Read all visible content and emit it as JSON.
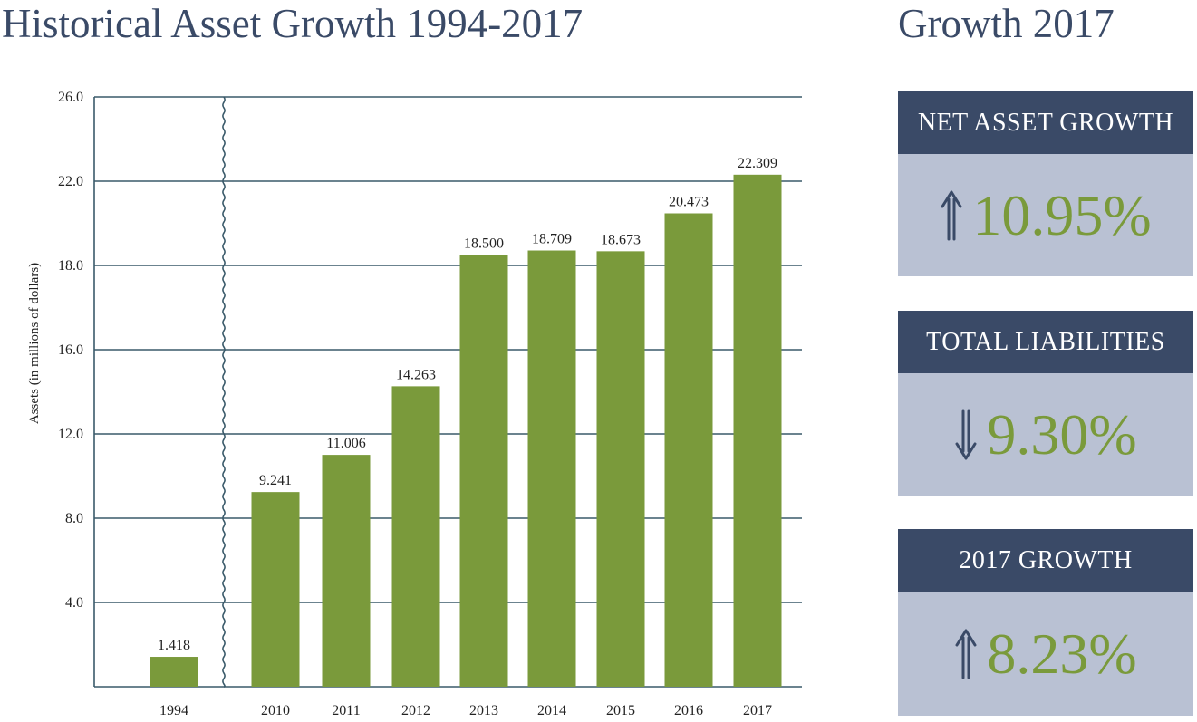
{
  "title": "Historical Asset Growth 1994-2017",
  "side_title": "Growth 2017",
  "cards": [
    {
      "label": "NET ASSET GROWTH",
      "value": "10.95%",
      "direction": "up",
      "arrow_icon": "double-arrow-up-icon"
    },
    {
      "label": "TOTAL LIABILITIES",
      "value": "9.30%",
      "direction": "down",
      "arrow_icon": "double-arrow-down-icon"
    },
    {
      "label": "2017 GROWTH",
      "value": "8.23%",
      "direction": "up",
      "arrow_icon": "double-arrow-up-icon"
    }
  ],
  "colors": {
    "navy": "#3a4a67",
    "bar_green": "#7a9a3b",
    "card_body": "#b9c1d3",
    "grid": "#3a5a6a"
  },
  "chart_data": {
    "type": "bar",
    "title": "Historical Asset Growth 1994-2017",
    "ylabel": "Assets (in millions of dollars)",
    "xlabel": "",
    "categories": [
      "1994",
      "2010",
      "2011",
      "2012",
      "2013",
      "2014",
      "2015",
      "2016",
      "2017"
    ],
    "values": [
      1.418,
      9.241,
      11.006,
      14.263,
      18.5,
      18.709,
      18.673,
      20.473,
      22.309
    ],
    "data_labels": [
      "1.418",
      "9.241",
      "11.006",
      "14.263",
      "18.500",
      "18.709",
      "18.673",
      "20.473",
      "22.309"
    ],
    "y_ticks": [
      4,
      8,
      12,
      16,
      18,
      22,
      26
    ],
    "y_tick_labels": [
      "4.0",
      "8.0",
      "12.0",
      "16.0",
      "18.0",
      "22.0",
      "26.0"
    ],
    "axis_break": "between 1994 and 2010",
    "grid": true
  }
}
